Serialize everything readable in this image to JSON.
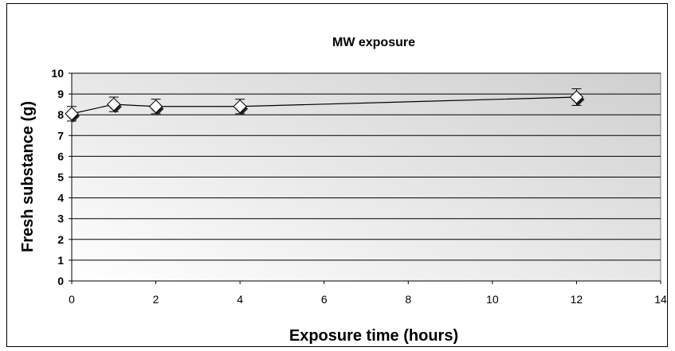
{
  "chart_data": {
    "type": "line",
    "title": "MW exposure",
    "xlabel": "Exposure time (hours)",
    "ylabel": "Fresh substance (g)",
    "xlim": [
      0,
      14
    ],
    "ylim": [
      0,
      10
    ],
    "x_ticks": [
      "0",
      "2",
      "4",
      "6",
      "8",
      "10",
      "12",
      "14"
    ],
    "y_ticks": [
      "0",
      "1",
      "2",
      "3",
      "4",
      "5",
      "6",
      "7",
      "8",
      "9",
      "10"
    ],
    "grid": "horizontal",
    "legend": "none",
    "series": [
      {
        "x": [
          0,
          1,
          2,
          4,
          12
        ],
        "y": [
          8.05,
          8.5,
          8.4,
          8.4,
          8.85
        ],
        "error": [
          0.35,
          0.35,
          0.35,
          0.35,
          0.4
        ],
        "marker": "diamond",
        "line_color": "#000000"
      }
    ],
    "background_gradient": [
      "#d0d0d0",
      "#ffffff"
    ]
  }
}
